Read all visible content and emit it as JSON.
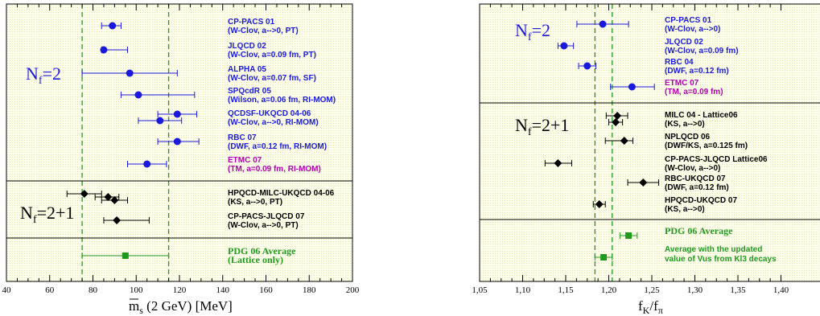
{
  "chart_data": [
    {
      "type": "scatter",
      "subtype": "errorbar-compilation",
      "xlabel_main": "m",
      "xlabel_sub": "s",
      "xlabel_rest": " (2 GeV)  [MeV]",
      "xlim": [
        40,
        200
      ],
      "xticks": [
        40,
        60,
        80,
        100,
        120,
        140,
        160,
        180,
        200
      ],
      "band": [
        75,
        115
      ],
      "colors": {
        "blue": "#1a1adc",
        "black": "#000000",
        "magenta": "#b000b0",
        "green": "#1f9a1f",
        "background": "#ffffee"
      },
      "sections": [
        {
          "label_main": "N",
          "label_sub": "f",
          "label_rest": "=2",
          "label_color": "#1a1adc"
        },
        {
          "label_main": "N",
          "label_sub": "f",
          "label_rest": "=2+1",
          "label_color": "#000000"
        },
        {
          "label_main": "",
          "label_sub": "",
          "label_rest": "",
          "label_color": "#000000"
        }
      ],
      "entries": [
        {
          "section": 0,
          "name": "CP-PACS 01",
          "sub": "(W-Clov, a-->0, PT)",
          "label_color": "#1a1adc",
          "color": "#1a1adc",
          "marker": "circle",
          "points": [
            {
              "x": 89,
              "xerr": [
                84,
                93
              ]
            }
          ]
        },
        {
          "section": 0,
          "name": "JLQCD 02",
          "sub": "(W-Clov, a=0.09 fm, PT)",
          "label_color": "#1a1adc",
          "color": "#1a1adc",
          "marker": "circle",
          "points": [
            {
              "x": 85,
              "xerr": [
                84,
                96
              ]
            }
          ]
        },
        {
          "section": 0,
          "name": "ALPHA 05",
          "sub": "(W-Clov, a=0.07 fm, SF)",
          "label_color": "#1a1adc",
          "color": "#1a1adc",
          "marker": "circle",
          "points": [
            {
              "x": 97,
              "xerr": [
                75,
                119
              ]
            }
          ]
        },
        {
          "section": 0,
          "name": "SPQcdR 05",
          "sub": "(Wilson, a=0.06 fm, RI-MOM)",
          "label_color": "#1a1adc",
          "color": "#1a1adc",
          "marker": "circle",
          "points": [
            {
              "x": 101,
              "xerr": [
                93,
                127
              ]
            }
          ]
        },
        {
          "section": 0,
          "name": "QCDSF-UKQCD 04-06",
          "sub": "(W-Clov, a-->0, RI-MOM)",
          "label_color": "#1a1adc",
          "color": "#1a1adc",
          "marker": "circle",
          "points": [
            {
              "x": 119,
              "xerr": [
                110,
                128
              ]
            },
            {
              "x": 111,
              "xerr": [
                101,
                121
              ]
            }
          ]
        },
        {
          "section": 0,
          "name": "RBC 07",
          "sub": "(DWF, a=0.12 fm, RI-MOM)",
          "label_color": "#1a1adc",
          "color": "#1a1adc",
          "marker": "circle",
          "points": [
            {
              "x": 119,
              "xerr": [
                110,
                129
              ]
            }
          ]
        },
        {
          "section": 0,
          "name": "ETMC 07",
          "sub": "(TM, a=0.09 fm, RI-MOM)",
          "label_color": "#b000b0",
          "color": "#1a1adc",
          "marker": "circle",
          "points": [
            {
              "x": 105,
              "xerr": [
                96,
                114
              ]
            }
          ]
        },
        {
          "section": 1,
          "name": "HPQCD-MILC-UKQCD 04-06",
          "sub": "(KS, a-->0, PT)",
          "label_color": "#000000",
          "color": "#000000",
          "marker": "diamond",
          "points": [
            {
              "x": 76,
              "xerr": [
                68,
                84
              ]
            },
            {
              "x": 87,
              "xerr": [
                81,
                92
              ]
            },
            {
              "x": 90,
              "xerr": [
                84,
                96
              ]
            }
          ]
        },
        {
          "section": 1,
          "name": "CP-PACS-JLQCD 07",
          "sub": "(W-Clov, a-->0, PT)",
          "label_color": "#000000",
          "color": "#000000",
          "marker": "diamond",
          "points": [
            {
              "x": 91,
              "xerr": [
                85,
                106
              ]
            }
          ]
        },
        {
          "section": 2,
          "name": "PDG 06 Average",
          "sub": "(Lattice only)",
          "label_color": "#1f9a1f",
          "color": "#1f9a1f",
          "marker": "square",
          "style": "avg",
          "points": [
            {
              "x": 95,
              "xerr": [
                75,
                115
              ]
            }
          ]
        }
      ]
    },
    {
      "type": "scatter",
      "subtype": "errorbar-compilation",
      "xlabel_main": "f",
      "xlabel_sub": "K",
      "xlabel_rest": "/f",
      "xlabel_sub2": "π",
      "xlim": [
        1.05,
        1.45
      ],
      "xticks": [
        "1,05",
        "1,10",
        "1,15",
        "1,20",
        "1,25",
        "1,30",
        "1,35",
        "1,40"
      ],
      "xtick_values": [
        1.05,
        1.1,
        1.15,
        1.2,
        1.25,
        1.3,
        1.35,
        1.4
      ],
      "band": [
        1.184,
        1.204
      ],
      "sections": [
        {
          "label_main": "N",
          "label_sub": "f",
          "label_rest": "=2",
          "label_color": "#1a1adc"
        },
        {
          "label_main": "N",
          "label_sub": "f",
          "label_rest": "=2+1",
          "label_color": "#000000"
        },
        {
          "label_main": "",
          "label_sub": "",
          "label_rest": "",
          "label_color": "#000000"
        }
      ],
      "entries": [
        {
          "section": 0,
          "name": "CP-PACS 01",
          "sub": "(W-Clov, a-->0)",
          "label_color": "#1a1adc",
          "color": "#1a1adc",
          "marker": "circle",
          "points": [
            {
              "x": 1.193,
              "xerr": [
                1.163,
                1.223
              ]
            }
          ]
        },
        {
          "section": 0,
          "name": "JLQCD 02",
          "sub": "(W-Clov, a=0.09 fm)",
          "label_color": "#1a1adc",
          "color": "#1a1adc",
          "marker": "circle",
          "points": [
            {
              "x": 1.148,
              "xerr": [
                1.141,
                1.159
              ]
            }
          ]
        },
        {
          "section": 0,
          "name": "RBC 04",
          "sub": "(DWF, a=0.12 fm)",
          "label_color": "#1a1adc",
          "color": "#1a1adc",
          "marker": "circle",
          "points": [
            {
              "x": 1.175,
              "xerr": [
                1.165,
                1.185
              ]
            }
          ]
        },
        {
          "section": 0,
          "name": "ETMC 07",
          "sub": "(TM, a=0.09 fm)",
          "label_color": "#b000b0",
          "color": "#1a1adc",
          "marker": "circle",
          "points": [
            {
              "x": 1.227,
              "xerr": [
                1.202,
                1.253
              ]
            }
          ]
        },
        {
          "section": 1,
          "name": "MILC 04 - Lattice06",
          "sub": "(KS, a-->0)",
          "label_color": "#000000",
          "color": "#000000",
          "marker": "diamond",
          "points": [
            {
              "x": 1.21,
              "xerr": [
                1.197,
                1.222
              ]
            },
            {
              "x": 1.208,
              "xerr": [
                1.2,
                1.216
              ]
            }
          ]
        },
        {
          "section": 1,
          "name": "NPLQCD 06",
          "sub": "(DWF/KS, a=0.125 fm)",
          "label_color": "#000000",
          "color": "#000000",
          "marker": "diamond",
          "points": [
            {
              "x": 1.218,
              "xerr": [
                1.196,
                1.228
              ]
            }
          ]
        },
        {
          "section": 1,
          "name": "CP-PACS-JLQCD Lattice06",
          "sub": "(W-Clov, a-->0)",
          "label_color": "#000000",
          "color": "#000000",
          "marker": "diamond",
          "points": [
            {
              "x": 1.141,
              "xerr": [
                1.126,
                1.157
              ]
            }
          ]
        },
        {
          "section": 1,
          "name": "RBC-UKQCD 07",
          "sub": "(DWF, a=0.12 fm)",
          "label_color": "#000000",
          "color": "#000000",
          "marker": "diamond",
          "points": [
            {
              "x": 1.24,
              "xerr": [
                1.222,
                1.258
              ]
            }
          ]
        },
        {
          "section": 1,
          "name": "HPQCD-UKQCD 07",
          "sub": "(KS, a-->0)",
          "label_color": "#000000",
          "color": "#000000",
          "marker": "diamond",
          "points": [
            {
              "x": 1.189,
              "xerr": [
                1.182,
                1.196
              ]
            }
          ]
        },
        {
          "section": 2,
          "name": "PDG 06 Average",
          "sub": "",
          "label_color": "#1f9a1f",
          "color": "#1f9a1f",
          "marker": "square",
          "style": "avg",
          "points": [
            {
              "x": 1.223,
              "xerr": [
                1.213,
                1.233
              ]
            }
          ]
        },
        {
          "section": 2,
          "name": "Average  with the updated",
          "sub": "value of Vus from Kl3 decays",
          "label_color": "#1f9a1f",
          "color": "#1f9a1f",
          "marker": "square",
          "style": "avg2",
          "points": [
            {
              "x": 1.194,
              "xerr": [
                1.184,
                1.204
              ]
            }
          ]
        }
      ]
    }
  ]
}
